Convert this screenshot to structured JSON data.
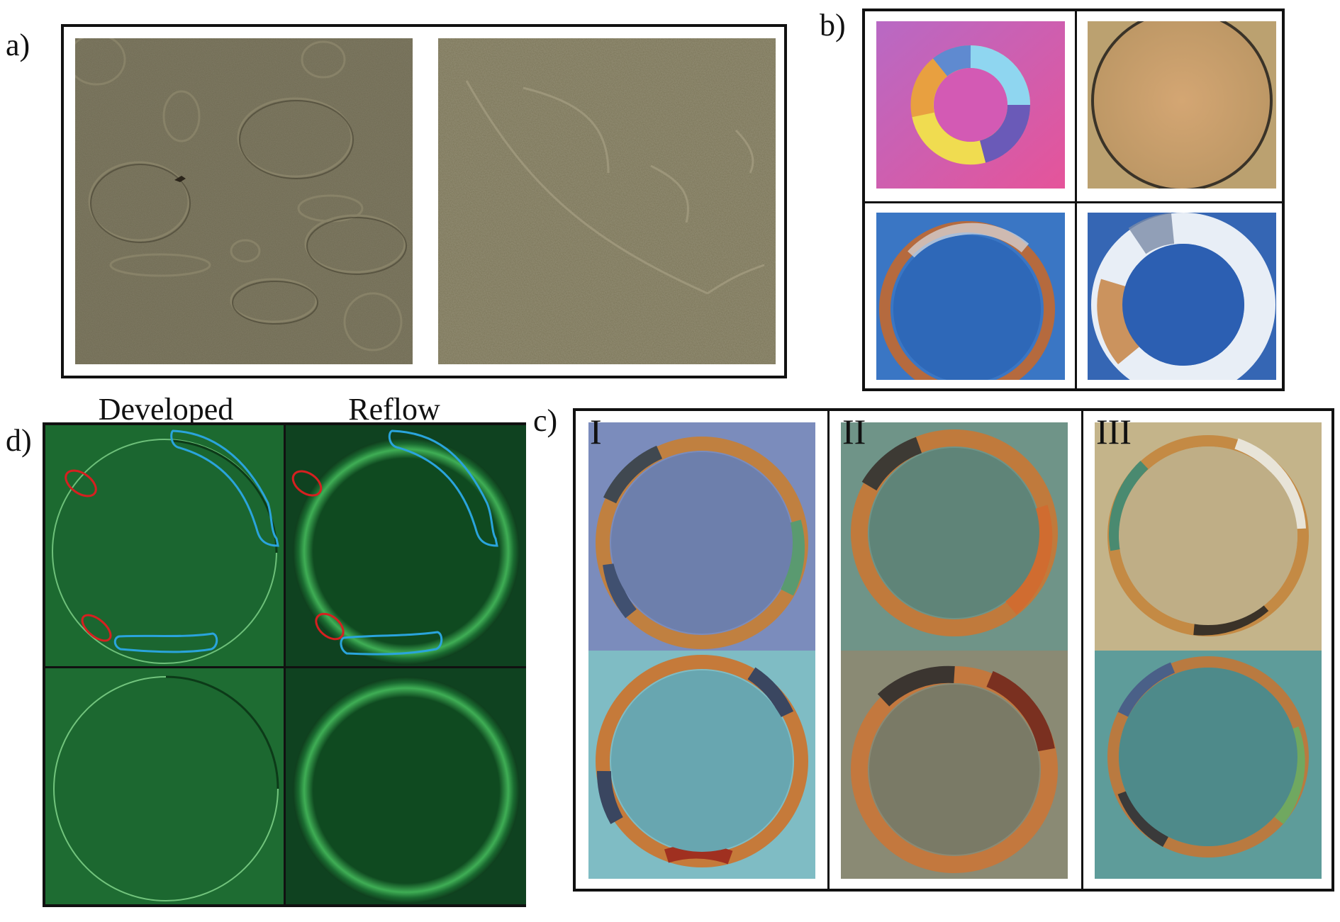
{
  "panels": {
    "a": {
      "label": "a)"
    },
    "b": {
      "label": "b)"
    },
    "c": {
      "label": "c)",
      "columns": [
        "I",
        "II",
        "III"
      ]
    },
    "d": {
      "label": "d)",
      "columns": [
        "Developed",
        "Reflow"
      ]
    }
  },
  "colors": {
    "annotation_red": "#d62020",
    "annotation_blue": "#2aa4dc"
  }
}
